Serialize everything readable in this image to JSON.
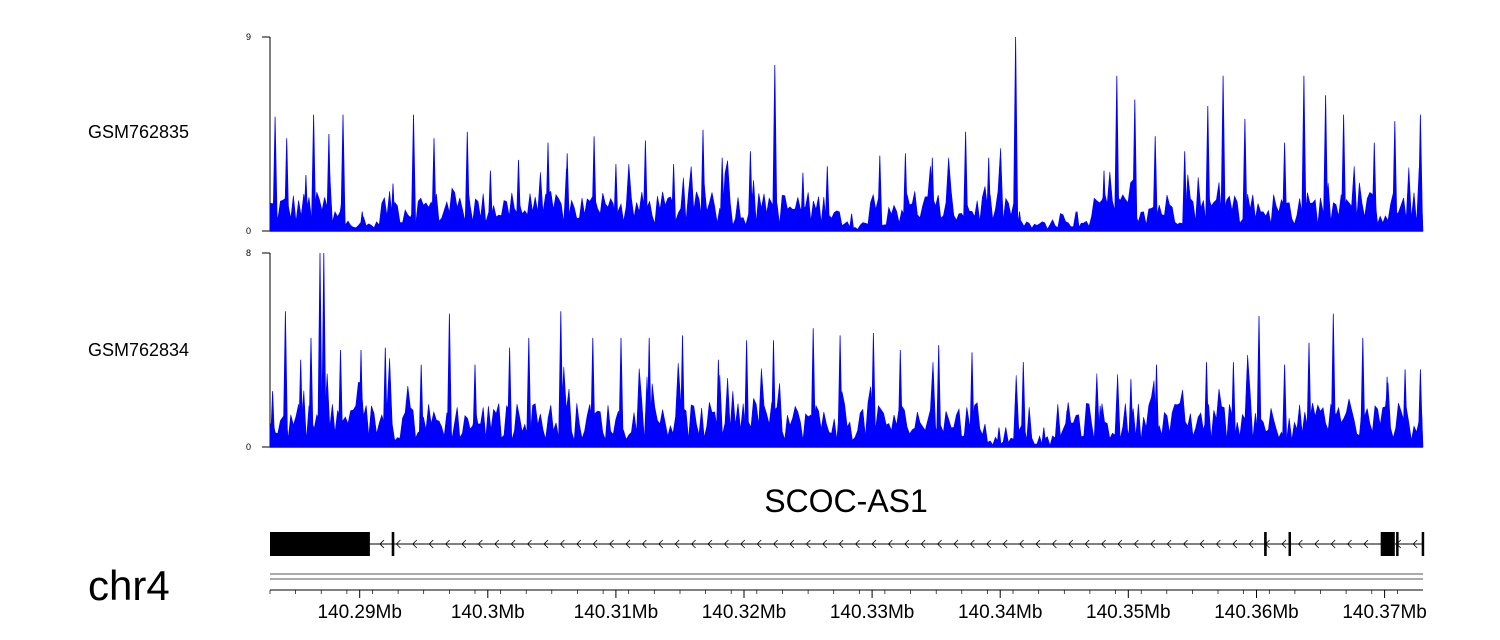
{
  "colors": {
    "signal": "#0000FF",
    "gene": "#000000",
    "axis": "#000000",
    "ideogram": "#555555"
  },
  "chart_data": [
    {
      "type": "area",
      "track": "GSM762835",
      "ylim": [
        0,
        9
      ],
      "ytick_labels": [
        "0",
        "9"
      ],
      "x_range_mb": [
        140.283,
        140.373
      ],
      "peaks": [
        {
          "x": 140.2834,
          "y": 5.3
        },
        {
          "x": 140.2843,
          "y": 4.3
        },
        {
          "x": 140.2858,
          "y": 2.6
        },
        {
          "x": 140.2864,
          "y": 5.4
        },
        {
          "x": 140.2876,
          "y": 4.5
        },
        {
          "x": 140.2887,
          "y": 5.4
        },
        {
          "x": 140.2902,
          "y": 0.9
        },
        {
          "x": 140.2926,
          "y": 2.2
        },
        {
          "x": 140.2942,
          "y": 5.4
        },
        {
          "x": 140.2958,
          "y": 4.3
        },
        {
          "x": 140.2984,
          "y": 4.6
        },
        {
          "x": 140.3002,
          "y": 2.8
        },
        {
          "x": 140.3024,
          "y": 3.3
        },
        {
          "x": 140.3047,
          "y": 4.1
        },
        {
          "x": 140.3062,
          "y": 3.6
        },
        {
          "x": 140.3083,
          "y": 4.4
        },
        {
          "x": 140.31,
          "y": 3.1
        },
        {
          "x": 140.3123,
          "y": 4.2
        },
        {
          "x": 140.3145,
          "y": 3.1
        },
        {
          "x": 140.3168,
          "y": 4.7
        },
        {
          "x": 140.3183,
          "y": 3.4
        },
        {
          "x": 140.3205,
          "y": 3.7
        },
        {
          "x": 140.3224,
          "y": 7.7
        },
        {
          "x": 140.3246,
          "y": 2.7
        },
        {
          "x": 140.3265,
          "y": 3.0
        },
        {
          "x": 140.3284,
          "y": 0.8
        },
        {
          "x": 140.3306,
          "y": 3.5
        },
        {
          "x": 140.3326,
          "y": 3.6
        },
        {
          "x": 140.3347,
          "y": 3.4
        },
        {
          "x": 140.3373,
          "y": 4.6
        },
        {
          "x": 140.3391,
          "y": 3.4
        },
        {
          "x": 140.3412,
          "y": 9.0
        },
        {
          "x": 140.3415,
          "y": 0.9
        },
        {
          "x": 140.3436,
          "y": 0.0
        },
        {
          "x": 140.346,
          "y": 0.9
        },
        {
          "x": 140.3481,
          "y": 2.8
        },
        {
          "x": 140.3491,
          "y": 7.2
        },
        {
          "x": 140.3505,
          "y": 6.1
        },
        {
          "x": 140.3521,
          "y": 4.4
        },
        {
          "x": 140.3544,
          "y": 3.7
        },
        {
          "x": 140.3562,
          "y": 5.8
        },
        {
          "x": 140.3574,
          "y": 7.2
        },
        {
          "x": 140.3591,
          "y": 5.2
        },
        {
          "x": 140.3622,
          "y": 4.1
        },
        {
          "x": 140.3637,
          "y": 7.2
        },
        {
          "x": 140.3654,
          "y": 6.3
        },
        {
          "x": 140.3668,
          "y": 5.4
        },
        {
          "x": 140.3692,
          "y": 4.1
        },
        {
          "x": 140.3708,
          "y": 5.1
        },
        {
          "x": 140.3728,
          "y": 5.4
        }
      ]
    },
    {
      "type": "area",
      "track": "GSM762834",
      "ylim": [
        0,
        8
      ],
      "ytick_labels": [
        "0",
        "8"
      ],
      "x_range_mb": [
        140.283,
        140.373
      ],
      "peaks": [
        {
          "x": 140.2832,
          "y": 2.3
        },
        {
          "x": 140.2842,
          "y": 5.6
        },
        {
          "x": 140.2854,
          "y": 3.6
        },
        {
          "x": 140.2862,
          "y": 4.5
        },
        {
          "x": 140.2869,
          "y": 8.0
        },
        {
          "x": 140.2872,
          "y": 8.0
        },
        {
          "x": 140.2885,
          "y": 4.0
        },
        {
          "x": 140.2901,
          "y": 4.0
        },
        {
          "x": 140.292,
          "y": 4.1
        },
        {
          "x": 140.2948,
          "y": 3.4
        },
        {
          "x": 140.297,
          "y": 5.5
        },
        {
          "x": 140.299,
          "y": 3.4
        },
        {
          "x": 140.3017,
          "y": 4.1
        },
        {
          "x": 140.3032,
          "y": 4.5
        },
        {
          "x": 140.3057,
          "y": 5.6
        },
        {
          "x": 140.3082,
          "y": 4.5
        },
        {
          "x": 140.3104,
          "y": 4.5
        },
        {
          "x": 140.3126,
          "y": 4.5
        },
        {
          "x": 140.3152,
          "y": 4.6
        },
        {
          "x": 140.318,
          "y": 3.6
        },
        {
          "x": 140.3202,
          "y": 4.4
        },
        {
          "x": 140.3223,
          "y": 4.4
        },
        {
          "x": 140.3254,
          "y": 4.9
        },
        {
          "x": 140.3275,
          "y": 4.6
        },
        {
          "x": 140.3301,
          "y": 4.7
        },
        {
          "x": 140.3322,
          "y": 4.0
        },
        {
          "x": 140.3352,
          "y": 4.2
        },
        {
          "x": 140.3378,
          "y": 3.9
        },
        {
          "x": 140.3399,
          "y": 0.8
        },
        {
          "x": 140.3418,
          "y": 3.5
        },
        {
          "x": 140.3434,
          "y": 0.8
        },
        {
          "x": 140.3452,
          "y": 1.5
        },
        {
          "x": 140.3478,
          "y": 1.7
        },
        {
          "x": 140.3502,
          "y": 2.8
        },
        {
          "x": 140.3522,
          "y": 3.4
        },
        {
          "x": 140.3541,
          "y": 1.8
        },
        {
          "x": 140.3561,
          "y": 3.5
        },
        {
          "x": 140.3582,
          "y": 3.5
        },
        {
          "x": 140.3602,
          "y": 5.4
        },
        {
          "x": 140.3622,
          "y": 3.4
        },
        {
          "x": 140.3641,
          "y": 4.3
        },
        {
          "x": 140.366,
          "y": 5.5
        },
        {
          "x": 140.3683,
          "y": 4.5
        },
        {
          "x": 140.3702,
          "y": 2.9
        },
        {
          "x": 140.3716,
          "y": 3.2
        },
        {
          "x": 140.3728,
          "y": 3.2
        }
      ]
    },
    {
      "type": "gene_track",
      "gene_name": "SCOC-AS1",
      "strand": "-",
      "span_mb": [
        140.283,
        140.373
      ],
      "exons_mb": [
        [
          140.283,
          140.2908
        ],
        [
          140.2925,
          140.2927
        ],
        [
          140.3606,
          140.3608
        ],
        [
          140.3625,
          140.3626
        ],
        [
          140.3697,
          140.3708
        ],
        [
          140.3709,
          140.371
        ],
        [
          140.3729,
          140.373
        ]
      ]
    }
  ],
  "chromosome": "chr4",
  "genome_axis": {
    "tick_labels": [
      "140.29Mb",
      "140.3Mb",
      "140.31Mb",
      "140.32Mb",
      "140.33Mb",
      "140.34Mb",
      "140.35Mb",
      "140.36Mb",
      "140.37Mb"
    ],
    "tick_values_mb": [
      140.29,
      140.3,
      140.31,
      140.32,
      140.33,
      140.34,
      140.35,
      140.36,
      140.37
    ]
  }
}
